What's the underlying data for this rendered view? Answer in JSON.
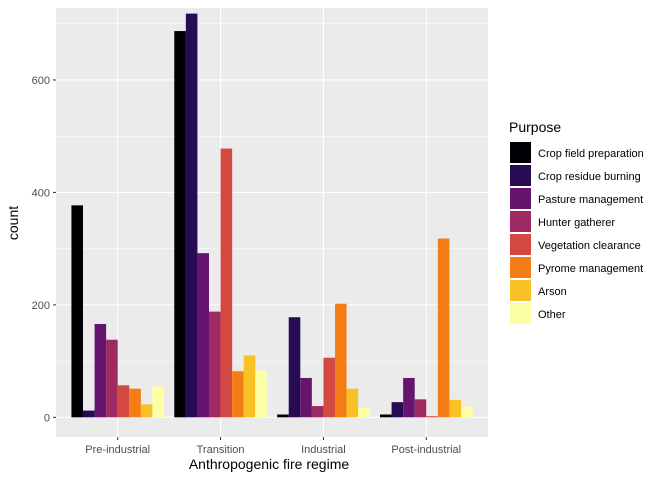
{
  "chart_data": {
    "type": "bar",
    "xlabel": "Anthropogenic fire regime",
    "ylabel": "count",
    "ylim": [
      -35,
      728
    ],
    "yticks": [
      0,
      200,
      400,
      600
    ],
    "grid": true,
    "legend": {
      "title": "Purpose",
      "position": "right"
    },
    "categories": [
      "Pre-industrial",
      "Transition",
      "Industrial",
      "Post-industrial"
    ],
    "series": [
      {
        "name": "Crop field preparation",
        "color": "#000004",
        "values": [
          377,
          687,
          5,
          5
        ]
      },
      {
        "name": "Crop residue burning",
        "color": "#280B54",
        "values": [
          12,
          718,
          178,
          27
        ]
      },
      {
        "name": "Pasture management",
        "color": "#65156E",
        "values": [
          166,
          292,
          70,
          70
        ]
      },
      {
        "name": "Hunter gatherer",
        "color": "#9F2A63",
        "values": [
          138,
          188,
          20,
          32
        ]
      },
      {
        "name": "Vegetation clearance",
        "color": "#D44842",
        "values": [
          57,
          478,
          106,
          2
        ]
      },
      {
        "name": "Pyrome management",
        "color": "#F57D15",
        "values": [
          51,
          82,
          202,
          318
        ]
      },
      {
        "name": "Arson",
        "color": "#FAC127",
        "values": [
          23,
          110,
          51,
          31
        ]
      },
      {
        "name": "Other",
        "color": "#FCFFA4",
        "values": [
          55,
          83,
          17,
          19
        ]
      }
    ]
  }
}
